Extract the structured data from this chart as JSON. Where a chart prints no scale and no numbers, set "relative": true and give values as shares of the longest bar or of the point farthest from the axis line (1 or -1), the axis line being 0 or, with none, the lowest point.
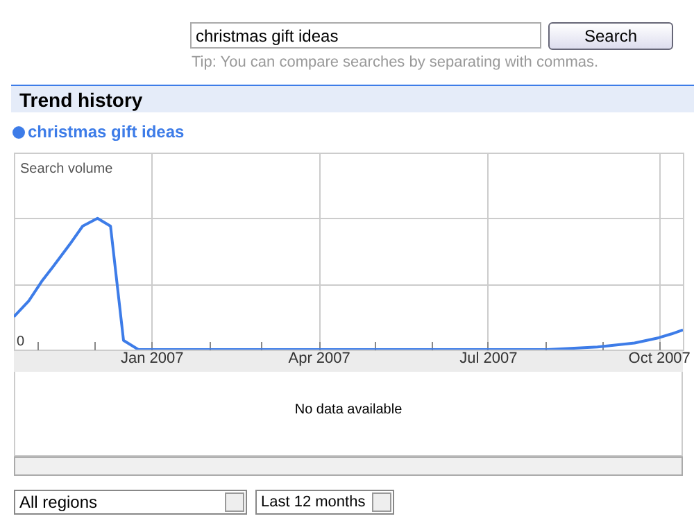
{
  "chart_data": {
    "type": "line",
    "title": "Trend history",
    "ylabel": "Search volume",
    "relative": true,
    "legend": "top left",
    "grid": true,
    "x": [
      "2006-10-19",
      "2006-10-27",
      "2006-11-03",
      "2006-11-09",
      "2006-11-18",
      "2006-11-25",
      "2006-12-03",
      "2006-12-10",
      "2006-12-17",
      "2006-12-25",
      "2007-08-02",
      "2007-08-29",
      "2007-09-18",
      "2007-10-01",
      "2007-10-08",
      "2007-10-14"
    ],
    "series": [
      {
        "name": "christmas gift ideas",
        "color": "#3d7ce8",
        "values": [
          0.25,
          0.37,
          0.52,
          0.63,
          0.8,
          0.94,
          1.0,
          0.94,
          0.07,
          0,
          0,
          0.02,
          0.05,
          0.09,
          0.12,
          0.15
        ]
      }
    ],
    "xlim": [
      "2006-10-19",
      "2007-10-14"
    ],
    "xticks": [
      {
        "value": "2006-11-01",
        "label": null
      },
      {
        "value": "2006-12-01",
        "label": null
      },
      {
        "value": "2007-01-01",
        "label": "Jan 2007"
      },
      {
        "value": "2007-02-01",
        "label": null
      },
      {
        "value": "2007-03-01",
        "label": null
      },
      {
        "value": "2007-04-01",
        "label": "Apr 2007"
      },
      {
        "value": "2007-05-01",
        "label": null
      },
      {
        "value": "2007-06-01",
        "label": null
      },
      {
        "value": "2007-07-01",
        "label": "Jul 2007"
      },
      {
        "value": "2007-08-01",
        "label": null
      },
      {
        "value": "2007-09-01",
        "label": null
      },
      {
        "value": "2007-10-01",
        "label": "Oct 2007"
      }
    ],
    "annotations": [
      "christmas gift ideas",
      "Search",
      "Tip: You can compare searches by separating with commas.",
      "0",
      "No data available",
      "All regions",
      "Last 12 months"
    ]
  }
}
